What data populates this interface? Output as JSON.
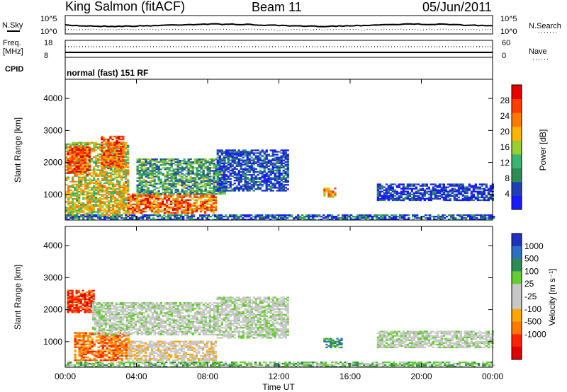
{
  "header": {
    "station": "King Salmon (fitACF)",
    "beam": "Beam 11",
    "date": "05/Jun/2011"
  },
  "status_panels": {
    "nsky_label": "N.Sky",
    "nsearch_label": "N.Search",
    "noise_ticks_left": [
      "10^5",
      "10^0"
    ],
    "noise_ticks_right": [
      "10^5",
      "10^0"
    ],
    "freq_label_1": "Freq.",
    "freq_label_2": "[MHz]",
    "freq_ticks": [
      "18",
      "8"
    ],
    "nave_label": "Nave",
    "nave_ticks": [
      "60",
      "0"
    ],
    "cpid_label": "CPID",
    "cpid_value": "normal (fast) 151 RF"
  },
  "colors": {
    "power_scale": [
      "#1a1aff",
      "#2040b8",
      "#2e8b57",
      "#3cb371",
      "#9acd32",
      "#ffb400",
      "#ff7800",
      "#ff3c00",
      "#e60000"
    ],
    "velocity_scale": [
      "#2030c0",
      "#2e6fbf",
      "#2e8b57",
      "#66cc33",
      "#c8c8c8",
      "#c8c8c8",
      "#ffa500",
      "#ff7800",
      "#ff2000",
      "#e00000"
    ]
  },
  "chart_data": [
    {
      "type": "heatmap",
      "panel": "power",
      "ylabel": "Slant Range [km]",
      "ylim": [
        200,
        4600
      ],
      "yticks": [
        "1000",
        "2000",
        "3000",
        "4000"
      ],
      "xlim": [
        "00:00",
        "24:00"
      ],
      "xticks": [
        "00:00",
        "04:00",
        "08:00",
        "12:00",
        "16:00",
        "20:00",
        "00:00"
      ],
      "colorbar": {
        "label": "Power [dB]",
        "range": [
          0,
          32
        ],
        "ticks": [
          "4",
          "8",
          "12",
          "16",
          "20",
          "24",
          "28"
        ]
      },
      "regions": [
        {
          "t0": 0.0,
          "t1": 3.5,
          "r0": 300,
          "r1": 2600,
          "level": 0.55
        },
        {
          "t0": 0.1,
          "t1": 1.4,
          "r0": 1600,
          "r1": 2500,
          "level": 0.85
        },
        {
          "t0": 2.0,
          "t1": 3.2,
          "r0": 1800,
          "r1": 2800,
          "level": 0.8
        },
        {
          "t0": 3.5,
          "t1": 8.5,
          "r0": 400,
          "r1": 1000,
          "level": 0.75
        },
        {
          "t0": 4.0,
          "t1": 9.0,
          "r0": 1000,
          "r1": 2100,
          "level": 0.35
        },
        {
          "t0": 8.5,
          "t1": 12.5,
          "r0": 1100,
          "r1": 2400,
          "level": 0.15
        },
        {
          "t0": 14.5,
          "t1": 15.2,
          "r0": 900,
          "r1": 1200,
          "level": 0.7
        },
        {
          "t0": 17.5,
          "t1": 24.0,
          "r0": 800,
          "r1": 1300,
          "level": 0.1
        },
        {
          "t0": 0.0,
          "t1": 24.0,
          "r0": 200,
          "r1": 350,
          "level": 0.2
        }
      ]
    },
    {
      "type": "heatmap",
      "panel": "velocity",
      "ylabel": "Slant Range [km]",
      "ylim": [
        200,
        4600
      ],
      "yticks": [
        "1000",
        "2000",
        "3000",
        "4000"
      ],
      "xlabel": "Time UT",
      "xlim": [
        "00:00",
        "24:00"
      ],
      "xticks": [
        "00:00",
        "04:00",
        "08:00",
        "12:00",
        "16:00",
        "20:00",
        "00:00"
      ],
      "colorbar": {
        "label": "Velocity [m s⁻¹]",
        "ticks": [
          "1000",
          "500",
          "100",
          "25",
          "-25",
          "-100",
          "-500",
          "-1000"
        ]
      },
      "regions": [
        {
          "t0": 0.1,
          "t1": 1.6,
          "r0": 1900,
          "r1": 2600,
          "level": 8
        },
        {
          "t0": 0.5,
          "t1": 3.5,
          "r0": 400,
          "r1": 1300,
          "level": 7
        },
        {
          "t0": 1.5,
          "t1": 8.5,
          "r0": 1200,
          "r1": 2200,
          "level": 4
        },
        {
          "t0": 3.5,
          "t1": 8.5,
          "r0": 400,
          "r1": 1000,
          "level": 5
        },
        {
          "t0": 8.5,
          "t1": 12.5,
          "r0": 1100,
          "r1": 2400,
          "level": 4
        },
        {
          "t0": 14.5,
          "t1": 15.5,
          "r0": 800,
          "r1": 1100,
          "level": 2
        },
        {
          "t0": 17.5,
          "t1": 24.0,
          "r0": 800,
          "r1": 1300,
          "level": 4
        },
        {
          "t0": 0.0,
          "t1": 24.0,
          "r0": 200,
          "r1": 350,
          "level": 3
        }
      ]
    }
  ]
}
